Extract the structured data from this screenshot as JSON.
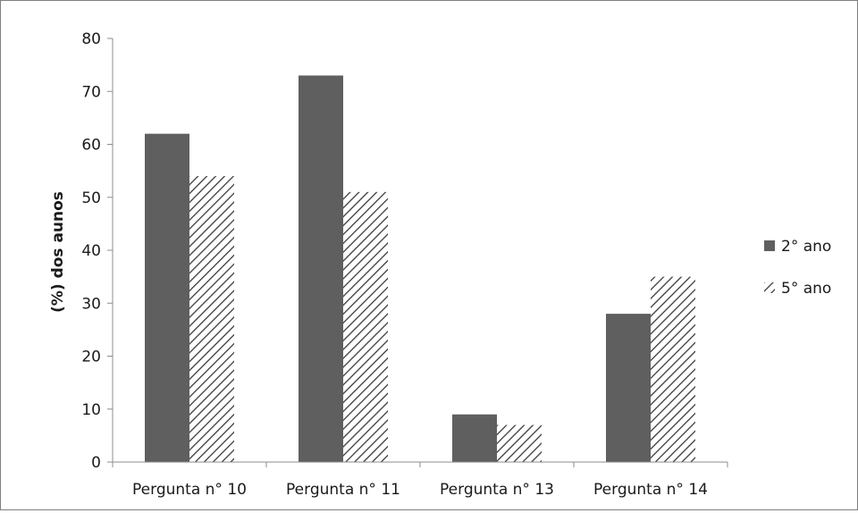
{
  "chart_data": {
    "type": "bar",
    "title": "",
    "xlabel": "",
    "ylabel": "(%) dos aunos",
    "ylim": [
      0,
      80
    ],
    "yticks": [
      0,
      10,
      20,
      30,
      40,
      50,
      60,
      70,
      80
    ],
    "grid": false,
    "legend_position": "right",
    "categories": [
      "Pergunta n° 10",
      "Pergunta n° 11",
      "Pergunta n° 13",
      "Pergunta n° 14"
    ],
    "series": [
      {
        "name": "2° ano",
        "values": [
          62,
          73,
          9,
          28
        ],
        "color": "#5f5f5f",
        "fill": "solid"
      },
      {
        "name": "5° ano",
        "values": [
          54,
          51,
          7,
          35
        ],
        "color": "#3a3a3a",
        "fill": "diagonal-hatch"
      }
    ]
  }
}
